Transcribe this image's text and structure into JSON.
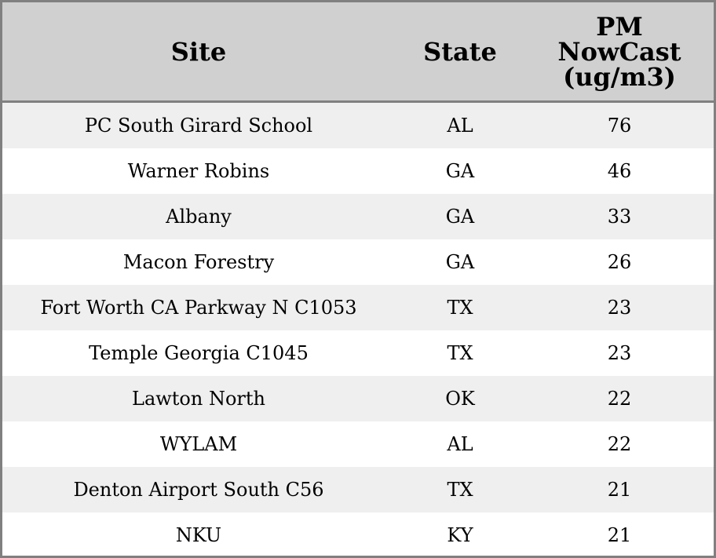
{
  "chart_data": {
    "type": "table",
    "columns": [
      "Site",
      "State",
      "PM NowCast (ug/m3)"
    ],
    "rows": [
      {
        "site": "PC South Girard School",
        "state": "AL",
        "pm": "76"
      },
      {
        "site": "Warner Robins",
        "state": "GA",
        "pm": "46"
      },
      {
        "site": "Albany",
        "state": "GA",
        "pm": "33"
      },
      {
        "site": "Macon Forestry",
        "state": "GA",
        "pm": "26"
      },
      {
        "site": "Fort Worth CA Parkway N C1053",
        "state": "TX",
        "pm": "23"
      },
      {
        "site": "Temple Georgia C1045",
        "state": "TX",
        "pm": "23"
      },
      {
        "site": "Lawton North",
        "state": "OK",
        "pm": "22"
      },
      {
        "site": "WYLAM",
        "state": "AL",
        "pm": "22"
      },
      {
        "site": "Denton Airport South C56",
        "state": "TX",
        "pm": "21"
      },
      {
        "site": "NKU",
        "state": "KY",
        "pm": "21"
      }
    ],
    "colors": {
      "header_bg": "#d0d0d0",
      "stripe_bg": "#efefef",
      "border": "#808080"
    }
  }
}
